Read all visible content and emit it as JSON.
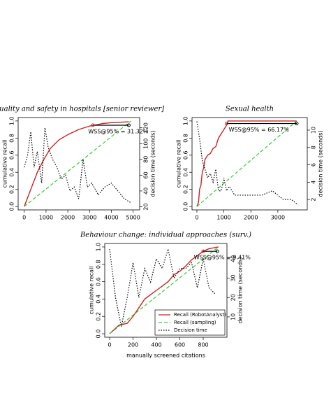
{
  "chart_data": [
    {
      "type": "line",
      "title": "Quality and safety in hospitals [senior reviewer]",
      "ylabel": "cumulative recall",
      "y2label": "decision time (seconds)",
      "xlim": [
        -280,
        5300
      ],
      "ylim": [
        -0.04,
        1.04
      ],
      "y2lim": [
        16,
        133
      ],
      "xticks": [
        0,
        1000,
        2000,
        3000,
        4000,
        5000
      ],
      "yticks": [
        {
          "value": 0,
          "label": "0.0"
        },
        {
          "value": 0.2,
          "label": "0.2"
        },
        {
          "value": 0.4,
          "label": "0.4"
        },
        {
          "value": 0.6,
          "label": "0.6"
        },
        {
          "value": 0.8,
          "label": "0.8"
        },
        {
          "value": 1,
          "label": "1.0"
        }
      ],
      "y2ticks": [
        20,
        40,
        60,
        80,
        100,
        120
      ],
      "annotation": "WSS@95% = 31.32%",
      "series": [
        {
          "color": "#cc2222",
          "style": "solid",
          "x": [
            0,
            300,
            600,
            900,
            1200,
            1600,
            2000,
            2500,
            3000,
            3200,
            3600,
            4000,
            4800
          ],
          "values": [
            0,
            0.2,
            0.4,
            0.55,
            0.68,
            0.78,
            0.84,
            0.9,
            0.94,
            0.95,
            0.97,
            0.98,
            0.99
          ]
        },
        {
          "color": "#33cc33",
          "style": "dashed",
          "x": [
            0,
            4900
          ],
          "values": [
            0,
            1
          ]
        },
        {
          "color": "#000000",
          "style": "dotted",
          "axis": "y2",
          "x": [
            0,
            150,
            300,
            450,
            600,
            800,
            950,
            1100,
            1300,
            1500,
            1700,
            1900,
            2100,
            2300,
            2500,
            2700,
            2900,
            3100,
            3400,
            3700,
            4000,
            4300,
            4600,
            4900
          ],
          "values": [
            70,
            85,
            115,
            70,
            90,
            50,
            120,
            95,
            80,
            70,
            55,
            60,
            40,
            45,
            30,
            80,
            45,
            50,
            35,
            45,
            50,
            40,
            30,
            25
          ]
        }
      ],
      "wss": {
        "x": [
          3150,
          4800
        ],
        "values": [
          0.95,
          0.95
        ]
      }
    },
    {
      "type": "line",
      "title": "Sexual health",
      "ylabel": "cumulative recall",
      "y2label": "decision time (seconds)",
      "xlim": [
        -180,
        4090
      ],
      "ylim": [
        -0.04,
        1.04
      ],
      "y2lim": [
        0.8,
        11.45
      ],
      "xticks": [
        0,
        1000,
        2000,
        3000
      ],
      "yticks": [
        {
          "value": 0,
          "label": "0.0"
        },
        {
          "value": 0.2,
          "label": "0.2"
        },
        {
          "value": 0.4,
          "label": "0.4"
        },
        {
          "value": 0.6,
          "label": "0.6"
        },
        {
          "value": 0.8,
          "label": "0.8"
        },
        {
          "value": 1,
          "label": "1.0"
        }
      ],
      "y2ticks": [
        2,
        4,
        6,
        8,
        10
      ],
      "annotation": "WSS@95% = 66.17%",
      "series": [
        {
          "color": "#cc2222",
          "style": "solid",
          "x": [
            0,
            60,
            100,
            150,
            200,
            250,
            300,
            400,
            500,
            600,
            700,
            800,
            900,
            1000,
            1100,
            1150,
            3700
          ],
          "values": [
            0,
            0.05,
            0.2,
            0.25,
            0.4,
            0.45,
            0.55,
            0.6,
            0.62,
            0.68,
            0.7,
            0.8,
            0.85,
            0.9,
            0.95,
            1,
            1
          ]
        },
        {
          "color": "#33cc33",
          "style": "dashed",
          "x": [
            0,
            3700
          ],
          "values": [
            0,
            1
          ]
        },
        {
          "color": "#000000",
          "style": "dotted",
          "axis": "y2",
          "x": [
            0,
            100,
            200,
            300,
            400,
            500,
            600,
            700,
            800,
            900,
            1000,
            1100,
            1200,
            1400,
            1600,
            2000,
            2400,
            2800,
            3200,
            3500,
            3700
          ],
          "values": [
            11,
            9,
            6.5,
            5.5,
            4.5,
            5,
            4,
            5.5,
            3,
            3,
            4.5,
            3,
            3.5,
            2.5,
            2.5,
            2.5,
            2.5,
            3,
            2,
            2,
            1.5
          ]
        }
      ],
      "wss": {
        "x": [
          1100,
          3700
        ],
        "values": [
          0.97,
          0.97
        ]
      }
    },
    {
      "type": "line",
      "title": "Behaviour change: individual approaches (surv.)",
      "ylabel": "cumulative recall",
      "y2label": "decision time (seconds)",
      "xlabel": "manually screened citations",
      "xlim": [
        -42,
        1003
      ],
      "ylim": [
        -0.04,
        1.04
      ],
      "y2lim": [
        -0.5,
        47.9
      ],
      "xticks": [
        0,
        200,
        400,
        600,
        800
      ],
      "yticks": [
        {
          "value": 0,
          "label": "0.0"
        },
        {
          "value": 0.2,
          "label": "0.2"
        },
        {
          "value": 0.4,
          "label": "0.4"
        },
        {
          "value": 0.6,
          "label": "0.6"
        },
        {
          "value": 0.8,
          "label": "0.8"
        },
        {
          "value": 1,
          "label": "1.0"
        }
      ],
      "y2ticks": [
        10,
        20,
        30,
        40
      ],
      "annotation": "WSS@95% = 9.41%",
      "legend": "bottomright",
      "series": [
        {
          "name": "Recall (RobotAnalyst)",
          "color": "#cc2222",
          "style": "solid",
          "x": [
            0,
            40,
            80,
            150,
            200,
            250,
            300,
            350,
            400,
            450,
            500,
            550,
            600,
            650,
            700,
            750,
            800,
            850,
            930
          ],
          "values": [
            0,
            0.05,
            0.1,
            0.12,
            0.2,
            0.3,
            0.4,
            0.45,
            0.5,
            0.55,
            0.6,
            0.68,
            0.72,
            0.78,
            0.85,
            0.9,
            0.95,
            0.98,
            1
          ]
        },
        {
          "name": "Recall (sampling)",
          "color": "#33cc33",
          "style": "dashed",
          "x": [
            0,
            930
          ],
          "values": [
            0,
            1
          ]
        },
        {
          "name": "Decision time",
          "color": "#000000",
          "style": "dotted",
          "axis": "y2",
          "x": [
            0,
            50,
            100,
            150,
            200,
            250,
            300,
            350,
            400,
            450,
            500,
            550,
            600,
            650,
            700,
            750,
            800,
            850,
            900
          ],
          "values": [
            45,
            20,
            5,
            20,
            38,
            20,
            35,
            28,
            40,
            35,
            45,
            30,
            35,
            35,
            38,
            25,
            40,
            25,
            22
          ]
        }
      ],
      "wss": {
        "x": [
          800,
          920
        ],
        "values": [
          0.95,
          0.95
        ]
      }
    }
  ]
}
